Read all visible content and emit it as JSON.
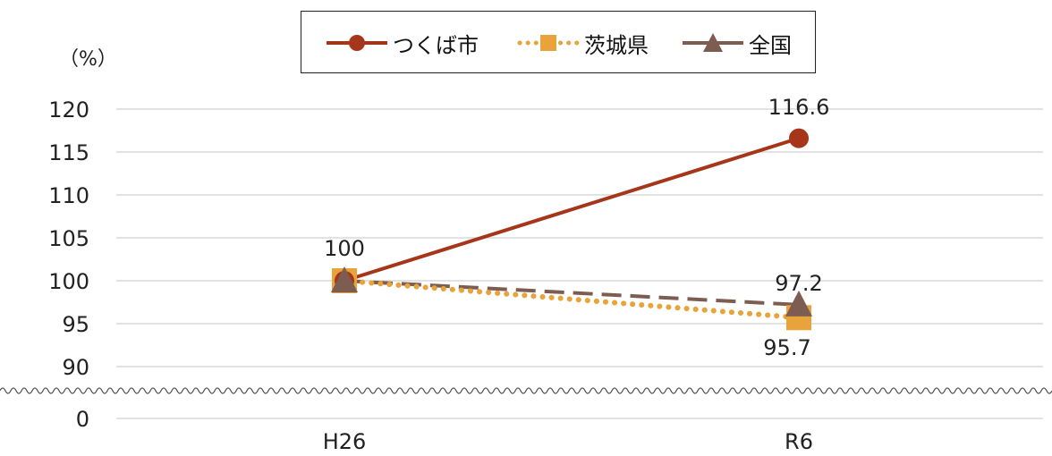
{
  "chart_data": {
    "type": "line",
    "unit_label": "（%）",
    "categories": [
      "H26",
      "R6"
    ],
    "y_ticks": [
      "120",
      "115",
      "110",
      "105",
      "100",
      "95",
      "90",
      "0"
    ],
    "axis_break": true,
    "grid": true,
    "legend_position": "top",
    "series": [
      {
        "name": "つくば市",
        "values": [
          100,
          116.6
        ],
        "color": "#A5361A",
        "marker": "circle",
        "line": "solid",
        "labels": [
          "100",
          "116.6"
        ]
      },
      {
        "name": "茨城県",
        "values": [
          100,
          95.7
        ],
        "color": "#E8A33A",
        "marker": "square",
        "line": "dotted",
        "labels": [
          "",
          "95.7"
        ]
      },
      {
        "name": "全国",
        "values": [
          100,
          97.2
        ],
        "color": "#7D5D52",
        "marker": "triangle",
        "line": "dashed",
        "labels": [
          "",
          "97.2"
        ]
      }
    ]
  }
}
